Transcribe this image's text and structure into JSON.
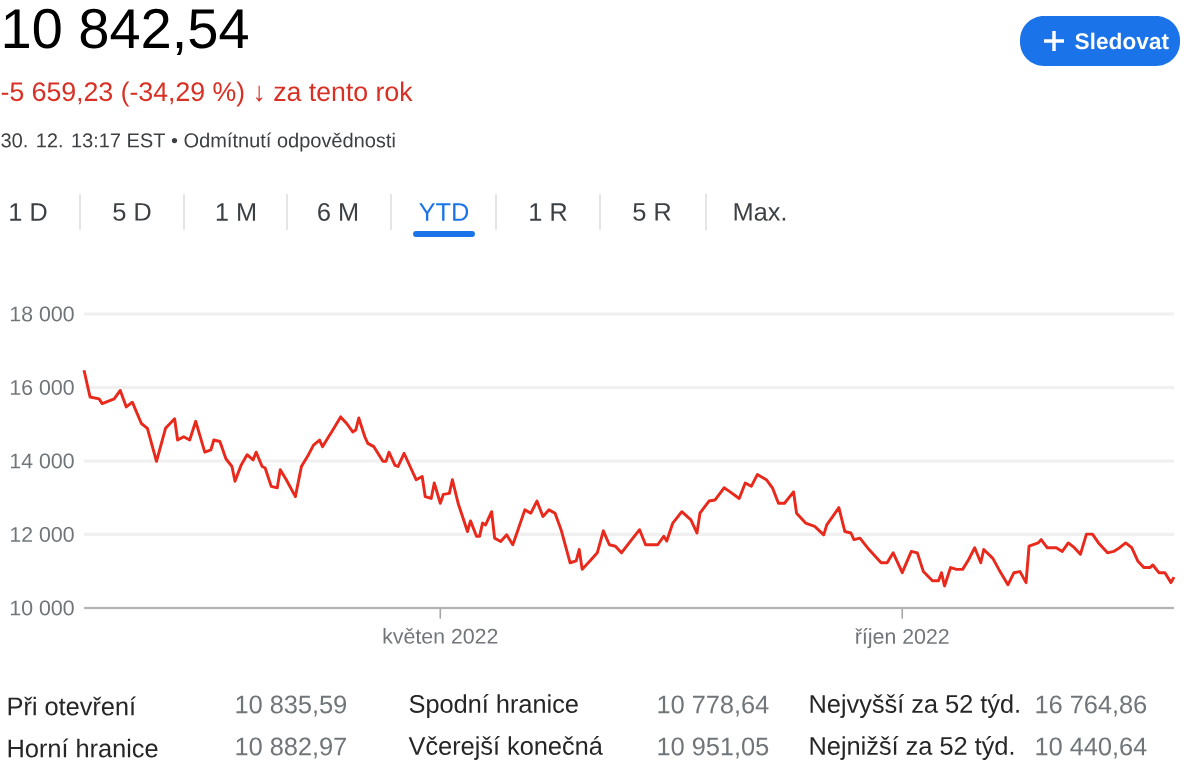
{
  "chart_data": {
    "type": "line",
    "title": "10 842,54",
    "subtitle": "-5 659,23 (-34,29 %) ↓ za tento rok",
    "annotations": [
      "30. 12. 13:17 EST • Odmítnutí odpovědnosti",
      "1 D",
      "5 D",
      "1 M",
      "6 M",
      "YTD",
      "1 R",
      "5 R",
      "Max.",
      "Sledovat",
      "Při otevření",
      "10 835,59",
      "Horní hranice",
      "10 882,97",
      "Spodní hranice",
      "10 778,64",
      "Včerejší konečná",
      "10 951,05",
      "Nejvyšší za 52 týd.",
      "16 764,86",
      "Nejnižší za 52 týd.",
      "10 440,64"
    ],
    "x": [
      "2022-01-03",
      "2022-01-05",
      "2022-01-08",
      "2022-01-09",
      "2022-01-13",
      "2022-01-15",
      "2022-01-17",
      "2022-01-19",
      "2022-01-22",
      "2022-01-24",
      "2022-01-27",
      "2022-01-30",
      "2022-02-02",
      "2022-02-03",
      "2022-02-05",
      "2022-02-07",
      "2022-02-09",
      "2022-02-12",
      "2022-02-14",
      "2022-02-15",
      "2022-02-17",
      "2022-02-19",
      "2022-02-21",
      "2022-02-22",
      "2022-02-24",
      "2022-02-26",
      "2022-02-28",
      "2022-03-01",
      "2022-03-03",
      "2022-03-04",
      "2022-03-06",
      "2022-03-08",
      "2022-03-09",
      "2022-03-11",
      "2022-03-14",
      "2022-03-16",
      "2022-03-18",
      "2022-03-20",
      "2022-03-22",
      "2022-03-23",
      "2022-03-25",
      "2022-03-26",
      "2022-03-29",
      "2022-03-31",
      "2022-04-02",
      "2022-04-03",
      "2022-04-04",
      "2022-04-06",
      "2022-04-07",
      "2022-04-09",
      "2022-04-12",
      "2022-04-13",
      "2022-04-14",
      "2022-04-16",
      "2022-04-17",
      "2022-04-19",
      "2022-04-21",
      "2022-04-23",
      "2022-04-25",
      "2022-04-26",
      "2022-04-28",
      "2022-04-29",
      "2022-05-01",
      "2022-05-02",
      "2022-05-04",
      "2022-05-05",
      "2022-05-07",
      "2022-05-08",
      "2022-05-10",
      "2022-05-11",
      "2022-05-13",
      "2022-05-14",
      "2022-05-15",
      "2022-05-16",
      "2022-05-18",
      "2022-05-19",
      "2022-05-21",
      "2022-05-23",
      "2022-05-25",
      "2022-05-26",
      "2022-05-29",
      "2022-05-31",
      "2022-06-02",
      "2022-06-04",
      "2022-06-06",
      "2022-06-08",
      "2022-06-10",
      "2022-06-13",
      "2022-06-15",
      "2022-06-16",
      "2022-06-17",
      "2022-06-20",
      "2022-06-22",
      "2022-06-24",
      "2022-06-26",
      "2022-06-28",
      "2022-06-30",
      "2022-07-03",
      "2022-07-06",
      "2022-07-08",
      "2022-07-12",
      "2022-07-14",
      "2022-07-15",
      "2022-07-17",
      "2022-07-20",
      "2022-07-23",
      "2022-07-25",
      "2022-07-26",
      "2022-07-29",
      "2022-07-31",
      "2022-08-03",
      "2022-08-05",
      "2022-08-08",
      "2022-08-10",
      "2022-08-12",
      "2022-08-14",
      "2022-08-17",
      "2022-08-19",
      "2022-08-21",
      "2022-08-23",
      "2022-08-26",
      "2022-08-27",
      "2022-08-30",
      "2022-09-02",
      "2022-09-05",
      "2022-09-06",
      "2022-09-08",
      "2022-09-10",
      "2022-09-12",
      "2022-09-14",
      "2022-09-15",
      "2022-09-17",
      "2022-09-20",
      "2022-09-24",
      "2022-09-26",
      "2022-09-28",
      "2022-10-01",
      "2022-10-04",
      "2022-10-06",
      "2022-10-08",
      "2022-10-11",
      "2022-10-13",
      "2022-10-14",
      "2022-10-15",
      "2022-10-17",
      "2022-10-19",
      "2022-10-21",
      "2022-10-23",
      "2022-10-25",
      "2022-10-27",
      "2022-10-28",
      "2022-10-31",
      "2022-11-02",
      "2022-11-05",
      "2022-11-07",
      "2022-11-09",
      "2022-11-11",
      "2022-11-12",
      "2022-11-15",
      "2022-11-16",
      "2022-11-18",
      "2022-11-21",
      "2022-11-23",
      "2022-11-25",
      "2022-11-27",
      "2022-11-29",
      "2022-12-01",
      "2022-12-03",
      "2022-12-05",
      "2022-12-08",
      "2022-12-10",
      "2022-12-12",
      "2022-12-14",
      "2022-12-16",
      "2022-12-18",
      "2022-12-20",
      "2022-12-22",
      "2022-12-23",
      "2022-12-25",
      "2022-12-27",
      "2022-12-29",
      "2022-12-30"
    ],
    "series": [
      {
        "color": "#e8291c",
        "values": [
          16470,
          15740,
          15690,
          15560,
          15690,
          15920,
          15470,
          15600,
          15020,
          14890,
          13990,
          14890,
          15150,
          14570,
          14660,
          14570,
          15080,
          14240,
          14300,
          14570,
          14530,
          14060,
          13850,
          13450,
          13880,
          14170,
          14030,
          14240,
          13850,
          13810,
          13310,
          13270,
          13760,
          13490,
          13030,
          13850,
          14120,
          14430,
          14570,
          14390,
          14660,
          14790,
          15200,
          15020,
          14790,
          14840,
          15170,
          14660,
          14480,
          14390,
          13990,
          13990,
          14240,
          13880,
          13850,
          14210,
          13850,
          13490,
          13580,
          13030,
          12980,
          13400,
          12850,
          13090,
          13120,
          13490,
          12820,
          12580,
          12080,
          12370,
          11950,
          11950,
          12310,
          12260,
          12620,
          11900,
          11810,
          11990,
          11720,
          11950,
          12670,
          12580,
          12910,
          12490,
          12670,
          12580,
          12130,
          11230,
          11280,
          11590,
          11050,
          11320,
          11500,
          12100,
          11720,
          11680,
          11500,
          11820,
          12130,
          11720,
          11720,
          11950,
          11820,
          12310,
          12620,
          12400,
          12040,
          12580,
          12910,
          12940,
          13270,
          13160,
          12980,
          13400,
          13310,
          13630,
          13490,
          13270,
          12850,
          12850,
          13160,
          12580,
          12310,
          12220,
          11990,
          12260,
          12490,
          12730,
          12080,
          12040,
          11860,
          11900,
          11590,
          11230,
          11230,
          11500,
          10960,
          11540,
          11500,
          10990,
          10740,
          10740,
          10960,
          10600,
          11100,
          11050,
          11050,
          11320,
          11640,
          11230,
          11590,
          11350,
          11050,
          10630,
          10960,
          10990,
          10690,
          11680,
          11770,
          11860,
          11640,
          11640,
          11540,
          11770,
          11640,
          11460,
          12010,
          12010,
          11770,
          11500,
          11540,
          11640,
          11770,
          11640,
          11280,
          11100,
          11100,
          11170,
          10960,
          10960,
          10690,
          10840
        ]
      }
    ],
    "xlim": [
      "2022-01-03",
      "2022-12-30"
    ],
    "xticks": [
      {
        "value": "2022-05-01",
        "label": "květen 2022"
      },
      {
        "value": "2022-10-01",
        "label": "říjen 2022"
      }
    ],
    "ylim": [
      10000,
      18000
    ],
    "yticks": [
      {
        "value": 10000,
        "label": "10 000"
      },
      {
        "value": 12000,
        "label": "12 000"
      },
      {
        "value": 14000,
        "label": "14 000"
      },
      {
        "value": 16000,
        "label": "16 000"
      },
      {
        "value": 18000,
        "label": "18 000"
      }
    ],
    "grid": "y"
  }
}
